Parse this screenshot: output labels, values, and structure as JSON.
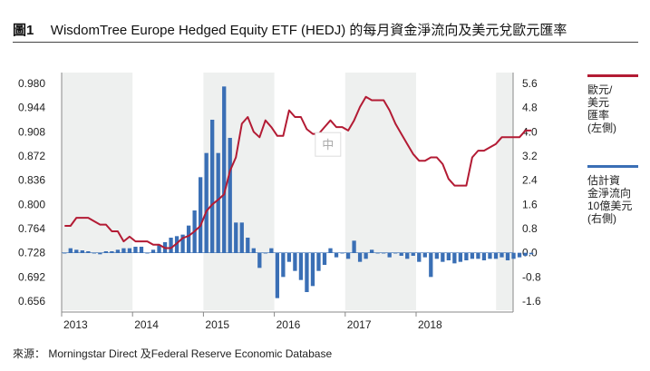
{
  "figure": {
    "number": "圖1",
    "title": "WisdomTree Europe Hedged Equity ETF (HEDJ) 的每月資金淨流向及美元兌歐元匯率"
  },
  "source_note": "來源：  Morningstar Direct 及Federal Reserve Economic Database",
  "watermark_glyph": "中",
  "legend": [
    {
      "label_lines": [
        "歐元/",
        "美元",
        "匯率",
        "(左側)"
      ],
      "color": "#b31b34"
    },
    {
      "label_lines": [
        "估計資",
        "金淨流向",
        "10億美元",
        "(右側)"
      ],
      "color": "#3a6fb5"
    }
  ],
  "chart_data": {
    "type": "bar+line",
    "x_tick_labels": [
      "2013",
      "2014",
      "2015",
      "2016",
      "2017",
      "2018"
    ],
    "left_axis": {
      "ticks": [
        "0.980",
        "0.944",
        "0.908",
        "0.872",
        "0.836",
        "0.800",
        "0.764",
        "0.728",
        "0.692",
        "0.656"
      ],
      "range": [
        0.656,
        0.98
      ]
    },
    "right_axis": {
      "ticks": [
        "5.6",
        "4.8",
        "4.0",
        "3.2",
        "2.4",
        "1.6",
        "0.8",
        "0.0",
        "-0.8",
        "-1.6"
      ],
      "range": [
        -1.6,
        5.6
      ]
    },
    "shaded_years": [
      "2013",
      "2015",
      "2017"
    ],
    "start": "2013-01",
    "series": [
      {
        "name": "歐元/美元匯率",
        "type": "line",
        "axis": "left",
        "color": "#b31b34",
        "values": [
          0.768,
          0.768,
          0.78,
          0.78,
          0.78,
          0.775,
          0.77,
          0.77,
          0.76,
          0.76,
          0.745,
          0.752,
          0.745,
          0.745,
          0.745,
          0.74,
          0.74,
          0.735,
          0.735,
          0.742,
          0.75,
          0.753,
          0.76,
          0.768,
          0.79,
          0.8,
          0.807,
          0.815,
          0.85,
          0.87,
          0.92,
          0.93,
          0.908,
          0.9,
          0.925,
          0.915,
          0.902,
          0.902,
          0.94,
          0.93,
          0.93,
          0.912,
          0.905,
          0.905,
          0.915,
          0.925,
          0.915,
          0.915,
          0.91,
          0.925,
          0.945,
          0.96,
          0.955,
          0.955,
          0.955,
          0.94,
          0.92,
          0.905,
          0.89,
          0.875,
          0.865,
          0.865,
          0.87,
          0.87,
          0.86,
          0.838,
          0.828,
          0.828,
          0.828,
          0.87,
          0.88,
          0.88,
          0.885,
          0.89,
          0.9,
          0.9,
          0.9,
          0.9,
          0.91,
          0.91
        ]
      },
      {
        "name": "估計資金淨流向",
        "type": "bar",
        "axis": "right",
        "color": "#3a6fb5",
        "values": [
          0.0,
          0.15,
          0.1,
          0.08,
          0.05,
          0.0,
          -0.05,
          0.05,
          0.05,
          0.1,
          0.15,
          0.15,
          0.2,
          0.2,
          0.0,
          0.1,
          0.25,
          0.35,
          0.5,
          0.55,
          0.6,
          0.9,
          1.4,
          2.5,
          3.3,
          4.4,
          3.3,
          5.5,
          3.8,
          1.0,
          1.0,
          0.5,
          0.15,
          -0.5,
          0.0,
          0.15,
          -1.5,
          -0.8,
          -0.3,
          -0.6,
          -0.9,
          -1.3,
          -1.1,
          -0.6,
          -0.4,
          0.15,
          -0.15,
          0.0,
          -0.2,
          0.4,
          -0.3,
          -0.2,
          0.1,
          0.0,
          0.0,
          -0.15,
          0.0,
          -0.1,
          -0.2,
          -0.1,
          -0.3,
          -0.15,
          -0.8,
          -0.2,
          -0.3,
          -0.25,
          -0.35,
          -0.3,
          -0.25,
          -0.2,
          -0.2,
          -0.25,
          -0.2,
          -0.2,
          -0.15,
          -0.25,
          -0.2,
          -0.15,
          -0.1,
          -0.05
        ]
      }
    ]
  }
}
